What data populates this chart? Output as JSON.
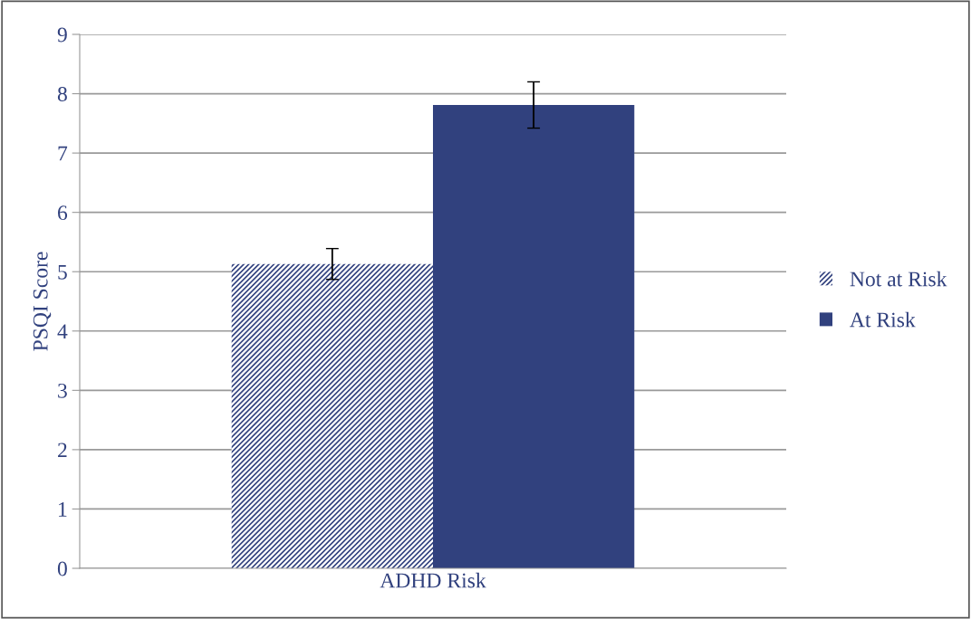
{
  "chart_data": {
    "type": "bar",
    "categories": [
      "ADHD Risk"
    ],
    "ylabel": "PSQI Score",
    "ylim": [
      0,
      9
    ],
    "yticks": [
      0,
      1,
      2,
      3,
      4,
      5,
      6,
      7,
      8,
      9
    ],
    "grid": "y",
    "legend": "right",
    "series": [
      {
        "name": "Not at Risk",
        "color": "#31417e",
        "values": [
          5.13
        ],
        "errors": [
          0.26
        ]
      },
      {
        "name": "At Risk",
        "color": "#31417e",
        "values": [
          7.81
        ],
        "errors": [
          0.39
        ]
      }
    ]
  }
}
